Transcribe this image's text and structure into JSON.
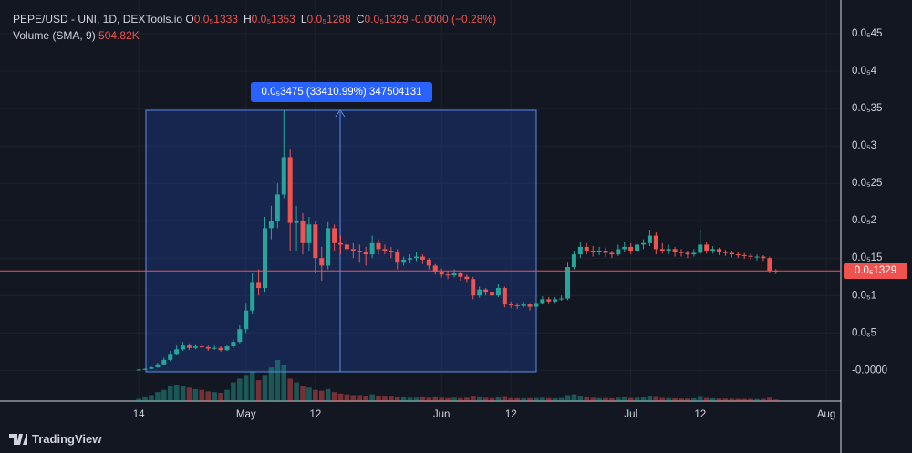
{
  "chart_data": {
    "type": "candlestick",
    "symbol": "PEPE/USD - UNI, 1D, DEXTools.io",
    "ohlc_legend": [
      {
        "key": "O",
        "value": "0.0₅1333"
      },
      {
        "key": "H",
        "value": "0.0₅1353"
      },
      {
        "key": "L",
        "value": "0.0₅1288"
      },
      {
        "key": "C",
        "value": "0.0₅1329"
      }
    ],
    "change": "-0.0000 (−0.28%)",
    "volume_title": "Volume (SMA, 9)",
    "volume_sma": "504.82K",
    "measure_label": "0.0₅3475 (33410.99%) 347504131",
    "last_price_label": "0.0₅1329",
    "brand": "TradingView",
    "up_color": "#26a69a",
    "down_color": "#ef5350",
    "xlim": [
      -22,
      111.3
    ],
    "xticks": [
      {
        "value": 0,
        "label": "14"
      },
      {
        "value": 17,
        "label": "May"
      },
      {
        "value": 28,
        "label": "12"
      },
      {
        "value": 48,
        "label": "Jun"
      },
      {
        "value": 59,
        "label": "12"
      },
      {
        "value": 78,
        "label": "Jul"
      },
      {
        "value": 89,
        "label": "12"
      },
      {
        "value": 109,
        "label": "Aug"
      }
    ],
    "ylim": [
      -4.1e-07,
      4.95e-06
    ],
    "yticks": [
      {
        "value": 4.5e-06,
        "label": "0.0₅45"
      },
      {
        "value": 4e-06,
        "label": "0.0₅4"
      },
      {
        "value": 3.5e-06,
        "label": "0.0₅35"
      },
      {
        "value": 3e-06,
        "label": "0.0₅3"
      },
      {
        "value": 2.5e-06,
        "label": "0.0₅25"
      },
      {
        "value": 2e-06,
        "label": "0.0₅2"
      },
      {
        "value": 1.5e-06,
        "label": "0.0₅15"
      },
      {
        "value": 1e-06,
        "label": "0.0₅1"
      },
      {
        "value": 5e-07,
        "label": "0.0₆5"
      },
      {
        "value": 0,
        "label": "-0.0000"
      }
    ],
    "grid": true,
    "x": [
      0,
      1,
      2,
      3,
      4,
      5,
      6,
      7,
      8,
      9,
      10,
      11,
      12,
      13,
      14,
      15,
      16,
      17,
      18,
      19,
      20,
      21,
      22,
      23,
      24,
      25,
      26,
      27,
      28,
      29,
      30,
      31,
      32,
      33,
      34,
      35,
      36,
      37,
      38,
      39,
      40,
      41,
      42,
      43,
      44,
      45,
      46,
      47,
      48,
      49,
      50,
      51,
      52,
      53,
      54,
      55,
      56,
      57,
      58,
      59,
      60,
      61,
      62,
      63,
      64,
      65,
      66,
      67,
      68,
      69,
      70,
      71,
      72,
      73,
      74,
      75,
      76,
      77,
      78,
      79,
      80,
      81,
      82,
      83,
      84,
      85,
      86,
      87,
      88,
      89,
      90,
      91,
      92,
      93,
      94,
      95,
      96,
      97,
      98,
      99,
      100,
      101
    ],
    "candles": [
      [
        5e-09,
        1.5e-08,
        3e-09,
        1e-08
      ],
      [
        1e-08,
        2.5e-08,
        8e-09,
        2e-08
      ],
      [
        2e-08,
        5e-08,
        1.8e-08,
        4e-08
      ],
      [
        4e-08,
        1e-07,
        3.5e-08,
        8e-08
      ],
      [
        8e-08,
        1.7e-07,
        7e-08,
        1.4e-07
      ],
      [
        1.4e-07,
        2.6e-07,
        1.2e-07,
        2.2e-07
      ],
      [
        2.2e-07,
        3.3e-07,
        2e-07,
        2.8e-07
      ],
      [
        2.8e-07,
        3.8e-07,
        2.6e-07,
        3.3e-07
      ],
      [
        3.3e-07,
        3.6e-07,
        2.7e-07,
        3e-07
      ],
      [
        3e-07,
        3.5e-07,
        2.8e-07,
        3.2e-07
      ],
      [
        3.2e-07,
        3.6e-07,
        2.9e-07,
        3.1e-07
      ],
      [
        3.1e-07,
        3.3e-07,
        2.6e-07,
        2.9e-07
      ],
      [
        2.9e-07,
        3.3e-07,
        2.7e-07,
        3e-07
      ],
      [
        3e-07,
        3.2e-07,
        2.5e-07,
        2.7e-07
      ],
      [
        2.7e-07,
        3.4e-07,
        2.6e-07,
        3.2e-07
      ],
      [
        3.2e-07,
        4.2e-07,
        3e-07,
        3.8e-07
      ],
      [
        3.8e-07,
        6e-07,
        3.6e-07,
        5.5e-07
      ],
      [
        5.5e-07,
        9e-07,
        5e-07,
        8e-07
      ],
      [
        8e-07,
        1.3e-06,
        7.5e-07,
        1.18e-06
      ],
      [
        1.18e-06,
        1.35e-06,
        1e-06,
        1.1e-06
      ],
      [
        1.1e-06,
        2.05e-06,
        1.05e-06,
        1.9e-06
      ],
      [
        1.9e-06,
        2.2e-06,
        1.75e-06,
        2e-06
      ],
      [
        2e-06,
        2.5e-06,
        1.9e-06,
        2.35e-06
      ],
      [
        2.35e-06,
        3.475e-06,
        2.3e-06,
        2.85e-06
      ],
      [
        2.85e-06,
        2.95e-06,
        1.6e-06,
        1.97e-06
      ],
      [
        1.97e-06,
        2.2e-06,
        1.6e-06,
        2e-06
      ],
      [
        2e-06,
        2.1e-06,
        1.55e-06,
        1.7e-06
      ],
      [
        1.7e-06,
        2.05e-06,
        1.6e-06,
        1.95e-06
      ],
      [
        1.95e-06,
        2e-06,
        1.3e-06,
        1.5e-06
      ],
      [
        1.5e-06,
        1.65e-06,
        1.2e-06,
        1.4e-06
      ],
      [
        1.4e-06,
        1.98e-06,
        1.35e-06,
        1.9e-06
      ],
      [
        1.9e-06,
        1.95e-06,
        1.6e-06,
        1.7e-06
      ],
      [
        1.7e-06,
        1.8e-06,
        1.55e-06,
        1.68e-06
      ],
      [
        1.68e-06,
        1.75e-06,
        1.55e-06,
        1.62e-06
      ],
      [
        1.62e-06,
        1.7e-06,
        1.5e-06,
        1.6e-06
      ],
      [
        1.6e-06,
        1.68e-06,
        1.45e-06,
        1.58e-06
      ],
      [
        1.58e-06,
        1.65e-06,
        1.4e-06,
        1.55e-06
      ],
      [
        1.55e-06,
        1.8e-06,
        1.5e-06,
        1.7e-06
      ],
      [
        1.7e-06,
        1.75e-06,
        1.55e-06,
        1.62e-06
      ],
      [
        1.62e-06,
        1.68e-06,
        1.55e-06,
        1.6e-06
      ],
      [
        1.6e-06,
        1.65e-06,
        1.5e-06,
        1.58e-06
      ],
      [
        1.58e-06,
        1.62e-06,
        1.35e-06,
        1.45e-06
      ],
      [
        1.45e-06,
        1.52e-06,
        1.4e-06,
        1.48e-06
      ],
      [
        1.48e-06,
        1.55e-06,
        1.44e-06,
        1.5e-06
      ],
      [
        1.5e-06,
        1.58e-06,
        1.46e-06,
        1.52e-06
      ],
      [
        1.52e-06,
        1.55e-06,
        1.42e-06,
        1.48e-06
      ],
      [
        1.48e-06,
        1.5e-06,
        1.35e-06,
        1.4e-06
      ],
      [
        1.4e-06,
        1.42e-06,
        1.28e-06,
        1.32e-06
      ],
      [
        1.32e-06,
        1.36e-06,
        1.24e-06,
        1.28e-06
      ],
      [
        1.28e-06,
        1.33e-06,
        1.22e-06,
        1.27e-06
      ],
      [
        1.27e-06,
        1.35e-06,
        1.24e-06,
        1.3e-06
      ],
      [
        1.3e-06,
        1.32e-06,
        1.2e-06,
        1.25e-06
      ],
      [
        1.25e-06,
        1.28e-06,
        1.18e-06,
        1.22e-06
      ],
      [
        1.22e-06,
        1.25e-06,
        9.5e-07,
        1e-06
      ],
      [
        1e-06,
        1.12e-06,
        9.7e-07,
        1.08e-06
      ],
      [
        1.08e-06,
        1.1e-06,
        1e-06,
        1.05e-06
      ],
      [
        1.05e-06,
        1.08e-06,
        9.6e-07,
        1e-06
      ],
      [
        1e-06,
        1.15e-06,
        9.8e-07,
        1.1e-06
      ],
      [
        1.1e-06,
        1.12e-06,
        8.4e-07,
        8.8e-07
      ],
      [
        8.8e-07,
        9.2e-07,
        8.3e-07,
        8.7e-07
      ],
      [
        8.7e-07,
        9e-07,
        8.2e-07,
        8.6e-07
      ],
      [
        8.6e-07,
        9.2e-07,
        8.4e-07,
        8.8e-07
      ],
      [
        8.8e-07,
        9e-07,
        8e-07,
        8.5e-07
      ],
      [
        8.5e-07,
        9.4e-07,
        8.3e-07,
        9e-07
      ],
      [
        9e-07,
        9.9e-07,
        8.8e-07,
        9.5e-07
      ],
      [
        9.5e-07,
        9.8e-07,
        8.9e-07,
        9.2e-07
      ],
      [
        9.2e-07,
        9.8e-07,
        9e-07,
        9.5e-07
      ],
      [
        9.5e-07,
        1e-06,
        9.3e-07,
        9.6e-07
      ],
      [
        9.6e-07,
        1.45e-06,
        9.4e-07,
        1.38e-06
      ],
      [
        1.38e-06,
        1.6e-06,
        1.35e-06,
        1.55e-06
      ],
      [
        1.55e-06,
        1.72e-06,
        1.5e-06,
        1.65e-06
      ],
      [
        1.65e-06,
        1.7e-06,
        1.55e-06,
        1.6e-06
      ],
      [
        1.6e-06,
        1.66e-06,
        1.52e-06,
        1.58e-06
      ],
      [
        1.58e-06,
        1.65e-06,
        1.54e-06,
        1.6e-06
      ],
      [
        1.6e-06,
        1.64e-06,
        1.52e-06,
        1.57e-06
      ],
      [
        1.57e-06,
        1.6e-06,
        1.5e-06,
        1.55e-06
      ],
      [
        1.55e-06,
        1.68e-06,
        1.53e-06,
        1.62e-06
      ],
      [
        1.62e-06,
        1.72e-06,
        1.58e-06,
        1.65e-06
      ],
      [
        1.65e-06,
        1.7e-06,
        1.55e-06,
        1.6e-06
      ],
      [
        1.6e-06,
        1.74e-06,
        1.58e-06,
        1.68e-06
      ],
      [
        1.68e-06,
        1.75e-06,
        1.62e-06,
        1.7e-06
      ],
      [
        1.7e-06,
        1.88e-06,
        1.66e-06,
        1.8e-06
      ],
      [
        1.8e-06,
        1.85e-06,
        1.55e-06,
        1.62e-06
      ],
      [
        1.62e-06,
        1.7e-06,
        1.56e-06,
        1.6e-06
      ],
      [
        1.6e-06,
        1.68e-06,
        1.55e-06,
        1.62e-06
      ],
      [
        1.62e-06,
        1.65e-06,
        1.52e-06,
        1.58e-06
      ],
      [
        1.58e-06,
        1.62e-06,
        1.52e-06,
        1.57e-06
      ],
      [
        1.57e-06,
        1.6e-06,
        1.5e-06,
        1.55e-06
      ],
      [
        1.55e-06,
        1.62e-06,
        1.52e-06,
        1.57e-06
      ],
      [
        1.57e-06,
        1.88e-06,
        1.55e-06,
        1.68e-06
      ],
      [
        1.68e-06,
        1.72e-06,
        1.56e-06,
        1.6e-06
      ],
      [
        1.6e-06,
        1.66e-06,
        1.56e-06,
        1.62e-06
      ],
      [
        1.62e-06,
        1.64e-06,
        1.54e-06,
        1.58e-06
      ],
      [
        1.58e-06,
        1.61e-06,
        1.53e-06,
        1.57e-06
      ],
      [
        1.57e-06,
        1.6e-06,
        1.51e-06,
        1.55e-06
      ],
      [
        1.55e-06,
        1.58e-06,
        1.5e-06,
        1.54e-06
      ],
      [
        1.54e-06,
        1.57e-06,
        1.49e-06,
        1.53e-06
      ],
      [
        1.53e-06,
        1.56e-06,
        1.48e-06,
        1.52e-06
      ],
      [
        1.52e-06,
        1.55e-06,
        1.47e-06,
        1.52e-06
      ],
      [
        1.52e-06,
        1.54e-06,
        1.46e-06,
        1.5e-06
      ],
      [
        1.5e-06,
        1.52e-06,
        1.3e-06,
        1.333e-06
      ],
      [
        1.333e-06,
        1.353e-06,
        1.288e-06,
        1.329e-06
      ]
    ],
    "volume": [
      300000,
      500000,
      800000,
      1200000,
      1500000,
      2000000,
      2200000,
      2000000,
      1800000,
      1600000,
      1500000,
      1300000,
      1200000,
      1100000,
      1500000,
      2500000,
      3000000,
      3500000,
      4000000,
      2800000,
      3500000,
      4500000,
      5500000,
      4800000,
      3000000,
      2500000,
      2000000,
      1800000,
      1500000,
      1400000,
      1600000,
      1200000,
      1000000,
      900000,
      800000,
      800000,
      700000,
      900000,
      700000,
      600000,
      600000,
      500000,
      500000,
      450000,
      450000,
      500000,
      450000,
      500000,
      450000,
      400000,
      450000,
      400000,
      450000,
      600000,
      500000,
      450000,
      400000,
      500000,
      550000,
      400000,
      400000,
      380000,
      400000,
      420000,
      450000,
      400000,
      380000,
      420000,
      800000,
      900000,
      700000,
      500000,
      450000,
      400000,
      420000,
      380000,
      450000,
      500000,
      420000,
      450000,
      480000,
      600000,
      550000,
      420000,
      400000,
      380000,
      350000,
      350000,
      380000,
      550000,
      420000,
      380000,
      350000,
      330000,
      320000,
      300000,
      300000,
      300000,
      280000,
      300000,
      450000,
      200000
    ]
  }
}
